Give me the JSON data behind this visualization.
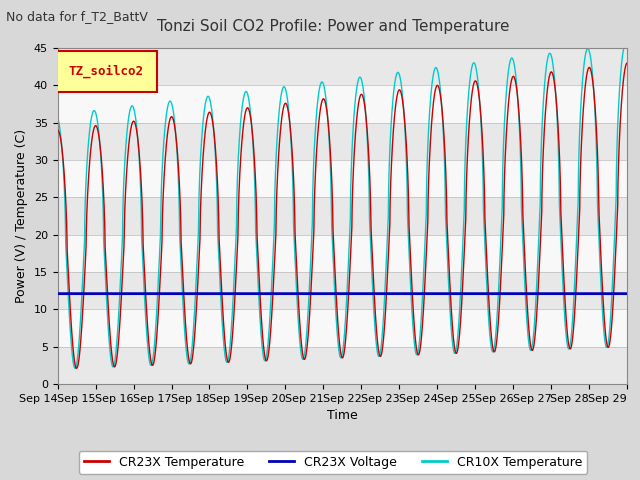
{
  "title": "Tonzi Soil CO2 Profile: Power and Temperature",
  "subtitle": "No data for f_T2_BattV",
  "xlabel": "Time",
  "ylabel": "Power (V) / Temperature (C)",
  "ylim": [
    0,
    45
  ],
  "yticks": [
    0,
    5,
    10,
    15,
    20,
    25,
    30,
    35,
    40,
    45
  ],
  "xlim_start": 0,
  "xlim_end": 15,
  "xtick_labels": [
    "Sep 14",
    "Sep 15",
    "Sep 16",
    "Sep 17",
    "Sep 18",
    "Sep 19",
    "Sep 20",
    "Sep 21",
    "Sep 22",
    "Sep 23",
    "Sep 24",
    "Sep 25",
    "Sep 26",
    "Sep 27",
    "Sep 28",
    "Sep 29"
  ],
  "cr23x_color": "#cc0000",
  "cr10x_color": "#00cccc",
  "voltage_color": "#0000bb",
  "voltage_value": 12.1,
  "bg_color": "#d8d8d8",
  "plot_bg_color": "#ffffff",
  "band_colors": [
    "#e8e8e8",
    "#f8f8f8"
  ],
  "legend_label_cr23x": "CR23X Temperature",
  "legend_label_voltage": "CR23X Voltage",
  "legend_label_cr10x": "CR10X Temperature",
  "legend_box_facecolor": "#ffff99",
  "legend_box_edgecolor": "#cc0000",
  "legend_box_text": "TZ_soilco2",
  "grid_color": "#bbbbbb",
  "title_fontsize": 11,
  "subtitle_fontsize": 9,
  "axis_fontsize": 9,
  "tick_fontsize": 8,
  "legend_fontsize": 9
}
